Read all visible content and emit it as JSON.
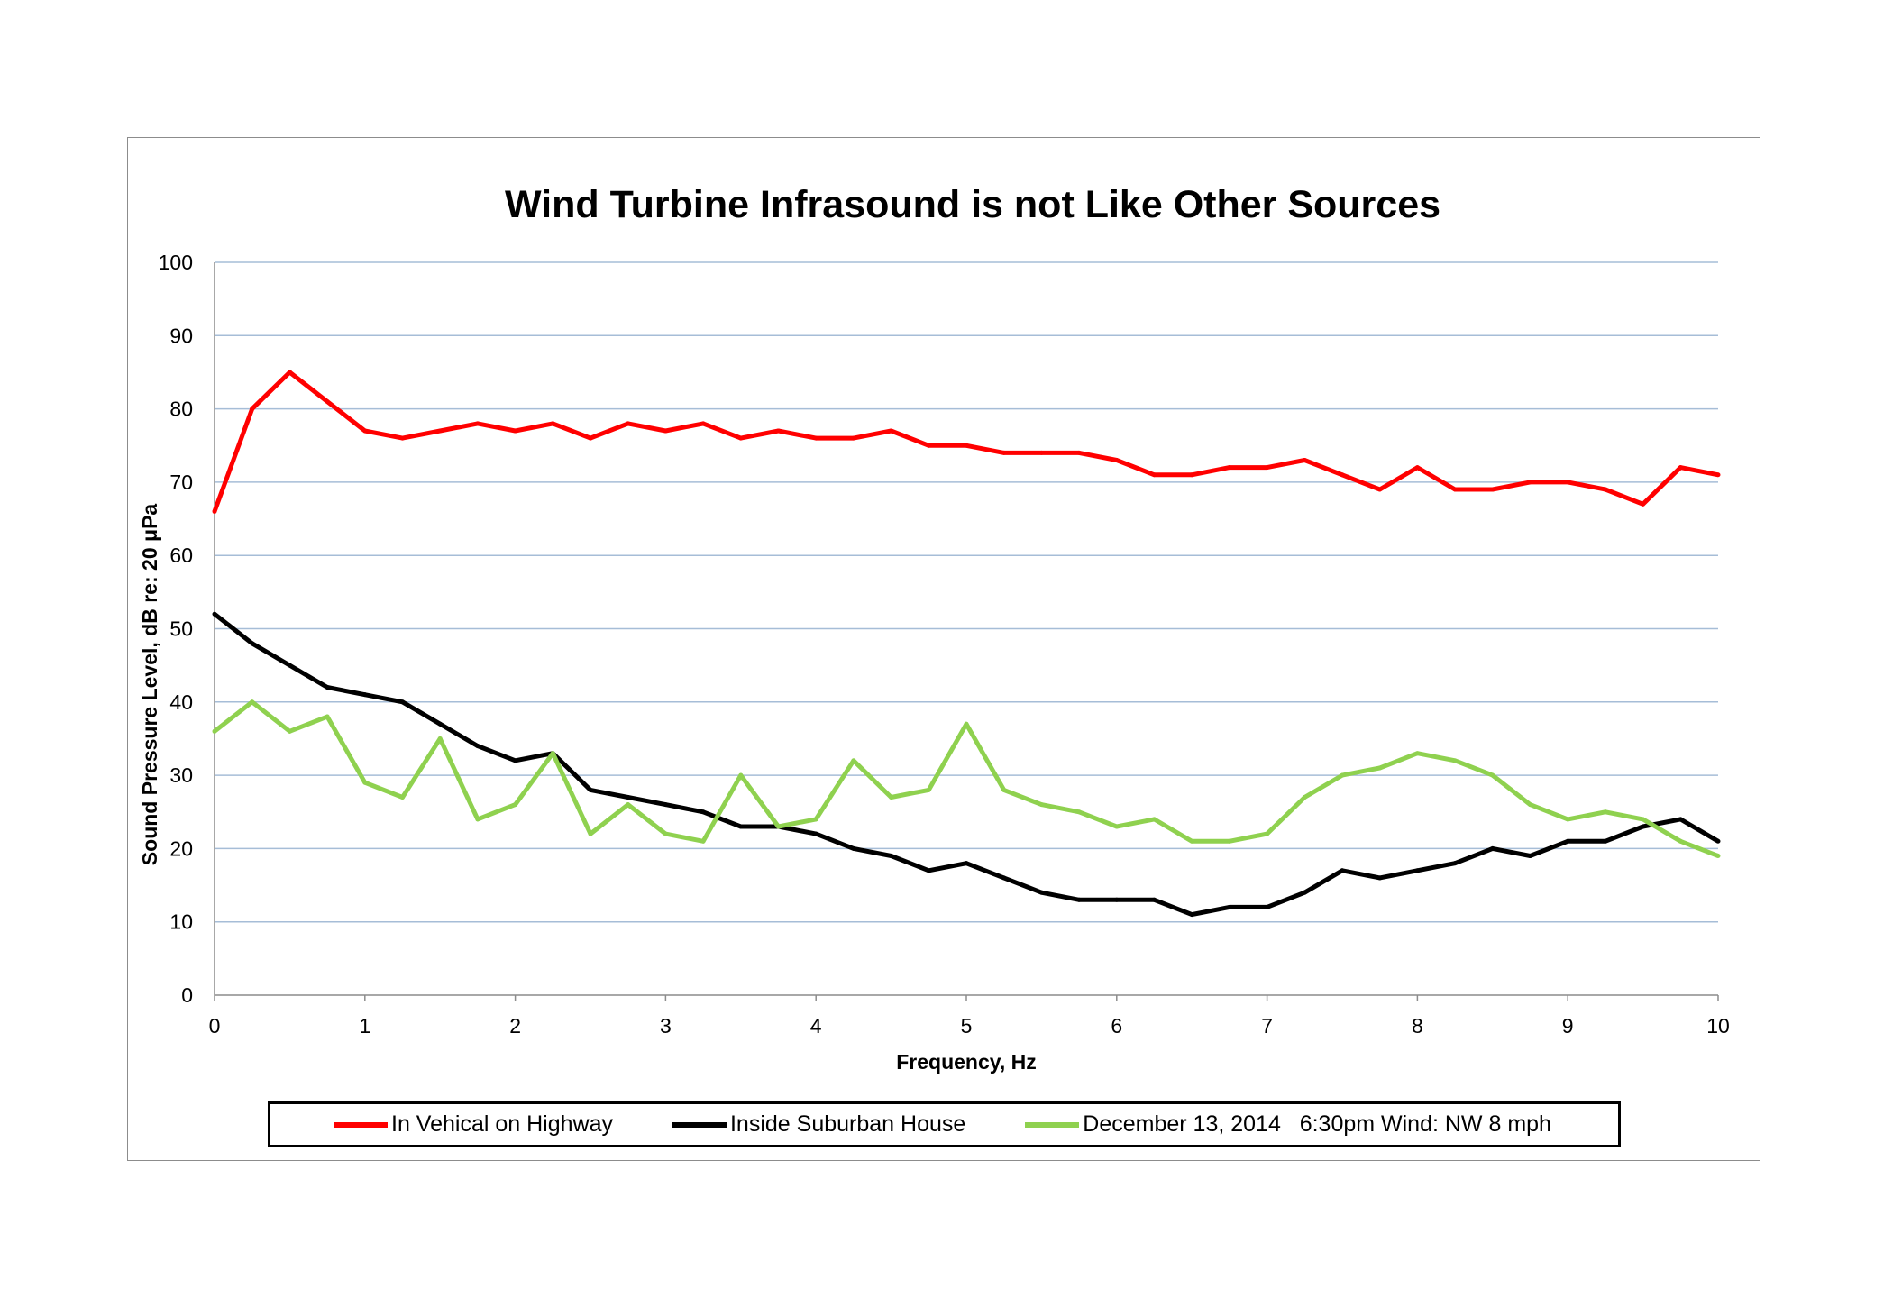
{
  "colors": {
    "red": "#ff0000",
    "black": "#000000",
    "green": "#8fd14f",
    "grid": "#a6bdd7",
    "axis": "#8c8c8c"
  },
  "chart_data": {
    "type": "line",
    "title": "Wind Turbine Infrasound is not Like Other Sources",
    "xlabel": "Frequency, Hz",
    "ylabel": "Sound Pressure Level, dB re: 20 μPa",
    "xlim": [
      0,
      10
    ],
    "ylim": [
      0,
      100
    ],
    "xticks": [
      "0",
      "1",
      "2",
      "3",
      "4",
      "5",
      "6",
      "7",
      "8",
      "9",
      "10"
    ],
    "yticks": [
      "0",
      "10",
      "20",
      "30",
      "40",
      "50",
      "60",
      "70",
      "80",
      "90",
      "100"
    ],
    "grid": "horizontal",
    "legend_position": "bottom",
    "x": [
      0,
      0.25,
      0.5,
      0.75,
      1,
      1.25,
      1.5,
      1.75,
      2,
      2.25,
      2.5,
      2.75,
      3,
      3.25,
      3.5,
      3.75,
      4,
      4.25,
      4.5,
      4.75,
      5,
      5.25,
      5.5,
      5.75,
      6,
      6.25,
      6.5,
      6.75,
      7,
      7.25,
      7.5,
      7.75,
      8,
      8.25,
      8.5,
      8.75,
      9,
      9.25,
      9.5,
      9.75,
      10
    ],
    "series": [
      {
        "name": "In Vehical on Highway",
        "color": "red",
        "values": [
          66,
          80,
          85,
          81,
          77,
          76,
          77,
          78,
          77,
          78,
          76,
          78,
          77,
          78,
          76,
          77,
          76,
          76,
          77,
          75,
          75,
          74,
          74,
          74,
          73,
          71,
          71,
          72,
          72,
          73,
          71,
          69,
          72,
          69,
          69,
          70,
          70,
          69,
          67,
          72,
          71
        ]
      },
      {
        "name": "Inside Suburban House",
        "color": "black",
        "values": [
          52,
          48,
          45,
          42,
          41,
          40,
          37,
          34,
          32,
          33,
          28,
          27,
          26,
          25,
          23,
          23,
          22,
          20,
          19,
          17,
          18,
          16,
          14,
          13,
          13,
          13,
          11,
          12,
          12,
          14,
          17,
          16,
          17,
          18,
          20,
          19,
          21,
          21,
          23,
          24,
          21
        ]
      },
      {
        "name": "December 13, 2014   6:30pm Wind: NW 8 mph",
        "color": "green",
        "values": [
          36,
          40,
          36,
          38,
          29,
          27,
          35,
          24,
          26,
          33,
          22,
          26,
          22,
          21,
          30,
          23,
          24,
          32,
          27,
          28,
          37,
          28,
          26,
          25,
          23,
          24,
          21,
          21,
          22,
          27,
          30,
          31,
          33,
          32,
          30,
          26,
          24,
          25,
          24,
          21,
          19
        ]
      }
    ]
  }
}
